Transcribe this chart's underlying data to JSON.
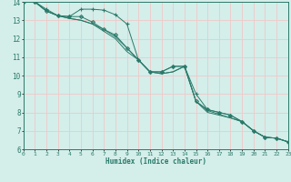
{
  "title": "",
  "xlabel": "Humidex (Indice chaleur)",
  "ylabel": "",
  "xlim": [
    0,
    23
  ],
  "ylim": [
    6,
    14
  ],
  "xticks": [
    0,
    1,
    2,
    3,
    4,
    5,
    6,
    7,
    8,
    9,
    10,
    11,
    12,
    13,
    14,
    15,
    16,
    17,
    18,
    19,
    20,
    21,
    22,
    23
  ],
  "yticks": [
    6,
    7,
    8,
    9,
    10,
    11,
    12,
    13,
    14
  ],
  "bg_color": "#d4eeea",
  "grid_color": "#f0c8c8",
  "line_color": "#2a7a6a",
  "series": [
    {
      "x": [
        0,
        1,
        2,
        3,
        4,
        5,
        6,
        7,
        8,
        9,
        10,
        11,
        12,
        13,
        14,
        15,
        16,
        17,
        18,
        19,
        20,
        21,
        22,
        23
      ],
      "y": [
        14.0,
        14.0,
        13.6,
        13.25,
        13.2,
        13.6,
        13.6,
        13.55,
        13.3,
        12.8,
        10.85,
        10.2,
        10.2,
        10.5,
        10.5,
        9.0,
        8.15,
        8.0,
        7.85,
        7.5,
        7.0,
        6.65,
        6.6,
        6.4
      ],
      "marker": "+",
      "markersize": 3.5
    },
    {
      "x": [
        0,
        1,
        2,
        3,
        4,
        5,
        6,
        7,
        8,
        9,
        10,
        11,
        12,
        13,
        14,
        15,
        16,
        17,
        18,
        19,
        20,
        21,
        22,
        23
      ],
      "y": [
        14.0,
        14.0,
        13.5,
        13.25,
        13.2,
        13.2,
        12.9,
        12.5,
        12.2,
        11.5,
        10.85,
        10.2,
        10.2,
        10.5,
        10.5,
        8.6,
        8.15,
        8.0,
        7.85,
        7.5,
        7.0,
        6.65,
        6.6,
        6.4
      ],
      "marker": "D",
      "markersize": 2.0
    },
    {
      "x": [
        0,
        1,
        2,
        3,
        4,
        5,
        6,
        7,
        8,
        9,
        10,
        11,
        12,
        13,
        14,
        15,
        16,
        17,
        18,
        19,
        20,
        21,
        22,
        23
      ],
      "y": [
        14.0,
        14.0,
        13.5,
        13.25,
        13.1,
        13.0,
        12.8,
        12.5,
        12.1,
        11.5,
        10.85,
        10.2,
        10.1,
        10.2,
        10.5,
        8.6,
        8.1,
        7.9,
        7.7,
        7.5,
        7.0,
        6.65,
        6.6,
        6.4
      ],
      "marker": "None",
      "markersize": 0
    },
    {
      "x": [
        0,
        1,
        2,
        3,
        4,
        5,
        6,
        7,
        8,
        9,
        10,
        11,
        12,
        13,
        14,
        15,
        16,
        17,
        18,
        19,
        20,
        21,
        22,
        23
      ],
      "y": [
        14.0,
        14.0,
        13.5,
        13.25,
        13.1,
        13.0,
        12.8,
        12.4,
        12.0,
        11.3,
        10.85,
        10.2,
        10.1,
        10.2,
        10.5,
        8.6,
        8.0,
        7.85,
        7.7,
        7.5,
        7.0,
        6.65,
        6.6,
        6.4
      ],
      "marker": "None",
      "markersize": 0
    }
  ]
}
